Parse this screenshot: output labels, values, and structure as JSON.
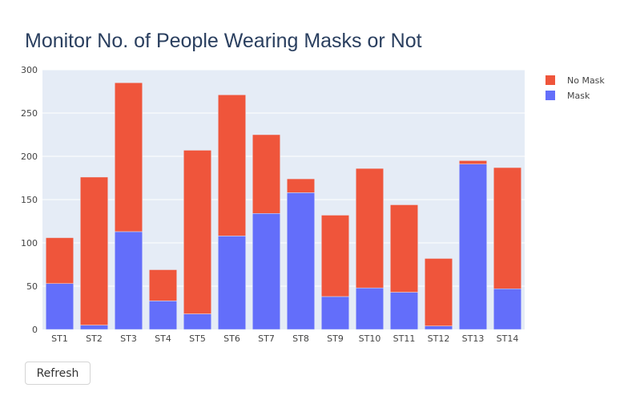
{
  "chart_data": {
    "type": "bar",
    "stacked": true,
    "title": "Monitor No. of People Wearing Masks or Not",
    "xlabel": "",
    "ylabel": "",
    "categories": [
      "ST1",
      "ST2",
      "ST3",
      "ST4",
      "ST5",
      "ST6",
      "ST7",
      "ST8",
      "ST9",
      "ST10",
      "ST11",
      "ST12",
      "ST13",
      "ST14"
    ],
    "ylim": [
      0,
      300
    ],
    "yticks": [
      0,
      50,
      100,
      150,
      200,
      250,
      300
    ],
    "grid": true,
    "legend_position": "top-right",
    "series": [
      {
        "name": "Mask",
        "color": "#636efa",
        "values": [
          53,
          5,
          113,
          33,
          18,
          108,
          134,
          158,
          38,
          48,
          43,
          4,
          191,
          47
        ]
      },
      {
        "name": "No Mask",
        "color": "#ef553b",
        "values": [
          53,
          171,
          172,
          36,
          189,
          163,
          91,
          16,
          94,
          138,
          101,
          78,
          4,
          140
        ]
      }
    ],
    "legend_order": [
      "No Mask",
      "Mask"
    ],
    "plot_bgcolor": "#e5ecf6"
  },
  "controls": {
    "refresh_label": "Refresh"
  }
}
